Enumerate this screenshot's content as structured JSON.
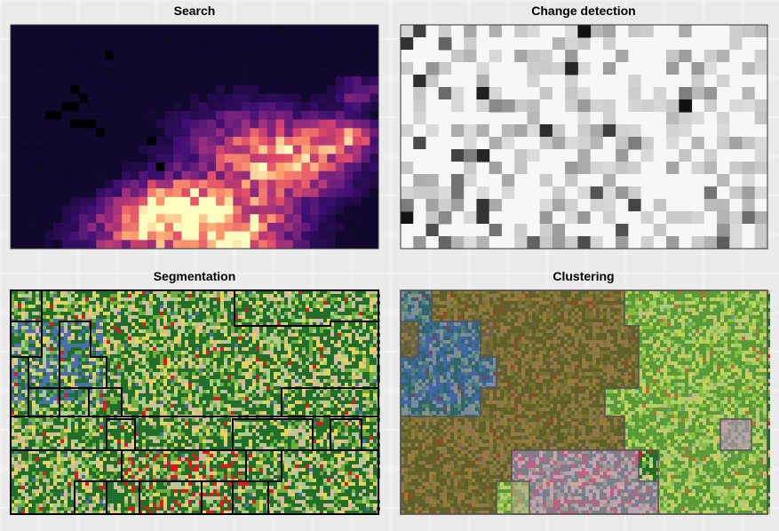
{
  "figure": {
    "background": "#ebebeb",
    "gridline_color": "#f7f7f7"
  },
  "chart_data": [
    {
      "type": "heatmap",
      "title": "Search",
      "palette": "magma",
      "colors": [
        "#0c0826",
        "#3b0f70",
        "#8c2981",
        "#de4968",
        "#fe9f6d",
        "#fcfdbf"
      ],
      "rows": 26,
      "cols": 43,
      "description_values": "intensity 0-1 per cell, high values concentrated bottom-center and right"
    },
    {
      "type": "heatmap",
      "title": "Change detection",
      "palette": "greys",
      "colors": [
        "#f7f7f7",
        "#dcdcdc",
        "#bdbdbd",
        "#969696",
        "#636363",
        "#111111"
      ],
      "rows": 18,
      "cols": 29
    },
    {
      "type": "heatmap",
      "title": "Segmentation",
      "palette": "land-cover",
      "colors": [
        "#1f6f2a",
        "#6fae3c",
        "#e8d25c",
        "#d9b8a0",
        "#e3161c",
        "#4a6fae",
        "#a9cf8f"
      ],
      "segment_outline_color": "#000000"
    },
    {
      "type": "heatmap",
      "title": "Clustering",
      "palette": "land-cover-tinted",
      "cluster_colors": [
        "#7a5a2b",
        "#a0d04a",
        "#3a5fa0",
        "#b88cc8"
      ],
      "segment_outline_color": "#555555"
    }
  ]
}
